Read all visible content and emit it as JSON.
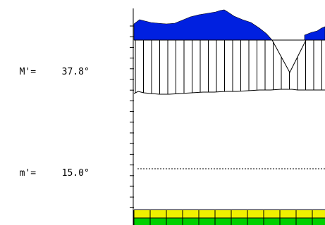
{
  "readouts": {
    "M_label": "M'=",
    "M_value": "37.8°",
    "m_label": "m'=",
    "m_value": "15.0°"
  },
  "colors": {
    "profile_fill": "#0020e0",
    "band_yellow": "#f0f000",
    "band_green": "#00d000",
    "axis": "#000000",
    "dashed_line": "#000000"
  }
}
